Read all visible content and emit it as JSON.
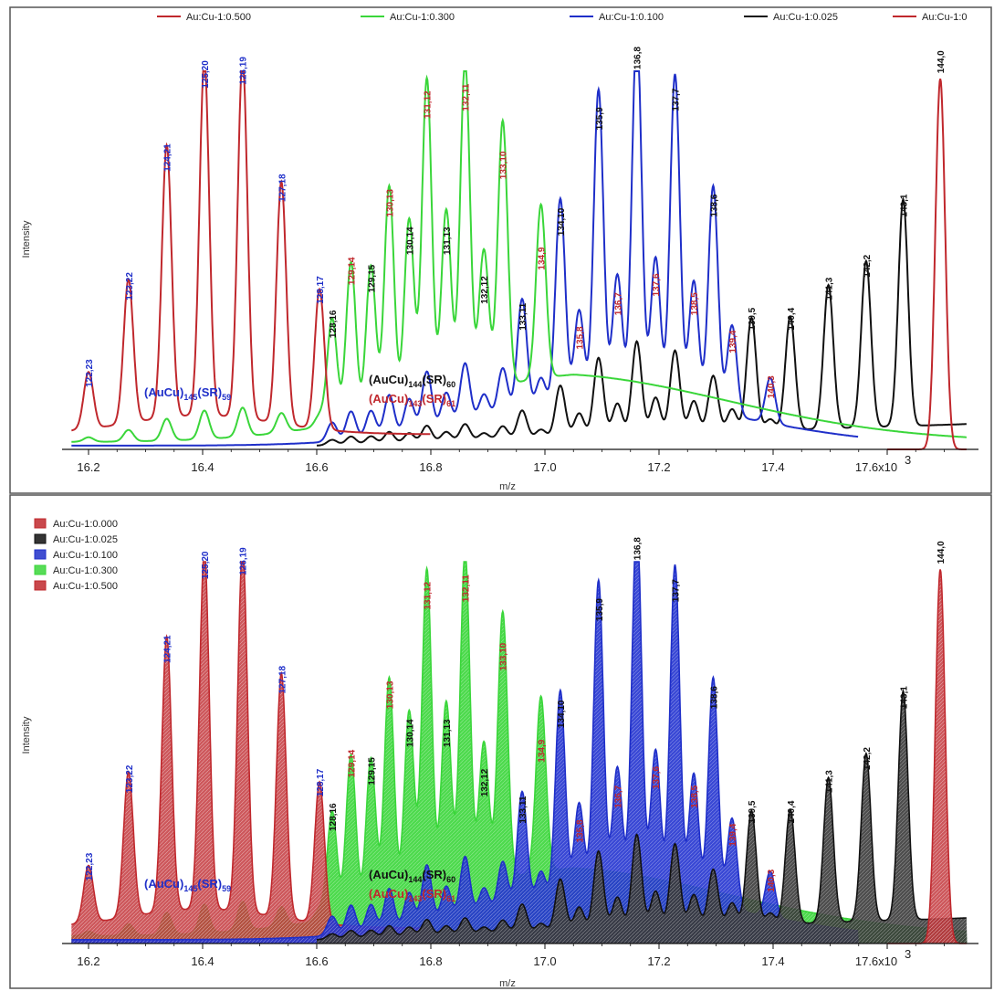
{
  "chart_data": [
    {
      "type": "line",
      "xlabel": "m/z",
      "ylabel": "Intensity",
      "x_unit_note": "17.6x10",
      "x_unit_exp": "3",
      "xlim": [
        16.17,
        17.75
      ],
      "x_ticks": [
        "16.2",
        "16.4",
        "16.6",
        "16.8",
        "17.0",
        "17.2",
        "17.4"
      ],
      "legend_placement": "top",
      "series": [
        {
          "name": "Au:Cu-1:0.500",
          "color": "#c0282d"
        },
        {
          "name": "Au:Cu-1:0.300",
          "color": "#3ad63a"
        },
        {
          "name": "Au:Cu-1:0.100",
          "color": "#1f2fc9"
        },
        {
          "name": "Au:Cu-1:0.025",
          "color": "#111111"
        },
        {
          "name": "Au:Cu-1:0",
          "color": "#c0282d"
        }
      ],
      "annotations": [
        {
          "main": "(AuCu)",
          "sub1": "145",
          "mid": "(SR)",
          "sub2": "59",
          "color": "#1f2fc9"
        },
        {
          "main": "(AuCu)",
          "sub1": "144",
          "mid": "(SR)",
          "sub2": "60",
          "color": "#111111"
        },
        {
          "main": "(AuCu)",
          "sub1": "143",
          "mid": "(SR)",
          "sub2": "61",
          "color": "#c0282d"
        }
      ]
    },
    {
      "type": "area",
      "xlabel": "m/z",
      "ylabel": "Intensity",
      "x_unit_note": "17.6x10",
      "x_unit_exp": "3",
      "xlim": [
        16.17,
        17.75
      ],
      "x_ticks": [
        "16.2",
        "16.4",
        "16.6",
        "16.8",
        "17.0",
        "17.2",
        "17.4"
      ],
      "legend_placement": "top-left",
      "series": [
        {
          "name": "Au:Cu-1:0.000",
          "color": "#c0282d"
        },
        {
          "name": "Au:Cu-1:0.025",
          "color": "#111111"
        },
        {
          "name": "Au:Cu-1:0.100",
          "color": "#1f2fc9"
        },
        {
          "name": "Au:Cu-1:0.300",
          "color": "#3ad63a"
        },
        {
          "name": "Au:Cu-1:0.500",
          "color": "#c0282d"
        }
      ],
      "annotations": [
        {
          "main": "(AuCu)",
          "sub1": "145",
          "mid": "(SR)",
          "sub2": "59",
          "color": "#1f2fc9"
        },
        {
          "main": "(AuCu)",
          "sub1": "144",
          "mid": "(SR)",
          "sub2": "60",
          "color": "#111111"
        },
        {
          "main": "(AuCu)",
          "sub1": "143",
          "mid": "(SR)",
          "sub2": "61",
          "color": "#c0282d"
        }
      ]
    }
  ],
  "peaks": [
    {
      "label": "122,23",
      "x": 16.2,
      "y": 0.15,
      "series": "c500",
      "label_color": "#1f2fc9"
    },
    {
      "label": "123,22",
      "x": 16.27,
      "y": 0.38,
      "series": "c500",
      "label_color": "#1f2fc9"
    },
    {
      "label": "124,21",
      "x": 16.337,
      "y": 0.72,
      "series": "c500",
      "label_color": "#1f2fc9"
    },
    {
      "label": "125,20",
      "x": 16.403,
      "y": 0.94,
      "series": "c500",
      "label_color": "#1f2fc9"
    },
    {
      "label": "126,19",
      "x": 16.47,
      "y": 0.95,
      "series": "c500",
      "label_color": "#1f2fc9"
    },
    {
      "label": "127,18",
      "x": 16.538,
      "y": 0.64,
      "series": "c500",
      "label_color": "#1f2fc9"
    },
    {
      "label": "128,17",
      "x": 16.605,
      "y": 0.37,
      "series": "c500",
      "label_color": "#1f2fc9"
    },
    {
      "label": "128,16",
      "x": 16.627,
      "y": 0.28,
      "series": "c300",
      "label_color": "#111111"
    },
    {
      "label": "129,14",
      "x": 16.66,
      "y": 0.42,
      "series": "c300",
      "label_color": "#c0282d"
    },
    {
      "label": "129,15",
      "x": 16.695,
      "y": 0.4,
      "series": "c300",
      "label_color": "#111111"
    },
    {
      "label": "130,13",
      "x": 16.727,
      "y": 0.6,
      "series": "c300",
      "label_color": "#c0282d"
    },
    {
      "label": "130,14",
      "x": 16.762,
      "y": 0.5,
      "series": "c300",
      "label_color": "#111111"
    },
    {
      "label": "131,12",
      "x": 16.793,
      "y": 0.86,
      "series": "c300",
      "label_color": "#c0282d"
    },
    {
      "label": "131,13",
      "x": 16.827,
      "y": 0.5,
      "series": "c300",
      "label_color": "#111111"
    },
    {
      "label": "132,11",
      "x": 16.86,
      "y": 0.88,
      "series": "c300",
      "label_color": "#c0282d"
    },
    {
      "label": "132,12",
      "x": 16.893,
      "y": 0.37,
      "series": "c300",
      "label_color": "#111111"
    },
    {
      "label": "133,10",
      "x": 16.926,
      "y": 0.7,
      "series": "c300",
      "label_color": "#c0282d"
    },
    {
      "label": "133,11",
      "x": 16.96,
      "y": 0.3,
      "series": "c100",
      "label_color": "#111111"
    },
    {
      "label": "134,9",
      "x": 16.993,
      "y": 0.46,
      "series": "c300",
      "label_color": "#c0282d"
    },
    {
      "label": "134,10",
      "x": 17.027,
      "y": 0.55,
      "series": "c100",
      "label_color": "#111111"
    },
    {
      "label": "135,8",
      "x": 17.06,
      "y": 0.25,
      "series": "c100",
      "label_color": "#c0282d"
    },
    {
      "label": "135,9",
      "x": 17.094,
      "y": 0.83,
      "series": "c100",
      "label_color": "#111111"
    },
    {
      "label": "136,7",
      "x": 17.127,
      "y": 0.34,
      "series": "c100",
      "label_color": "#c0282d"
    },
    {
      "label": "136,8",
      "x": 17.161,
      "y": 0.99,
      "series": "c100",
      "label_color": "#111111"
    },
    {
      "label": "137,6",
      "x": 17.194,
      "y": 0.39,
      "series": "c100",
      "label_color": "#c0282d"
    },
    {
      "label": "137,7",
      "x": 17.228,
      "y": 0.88,
      "series": "c100",
      "label_color": "#111111"
    },
    {
      "label": "138,5",
      "x": 17.261,
      "y": 0.34,
      "series": "c100",
      "label_color": "#c0282d"
    },
    {
      "label": "138,6",
      "x": 17.295,
      "y": 0.6,
      "series": "c100",
      "label_color": "#111111"
    },
    {
      "label": "139,4",
      "x": 17.328,
      "y": 0.24,
      "series": "c100",
      "label_color": "#c0282d"
    },
    {
      "label": "139,5",
      "x": 17.362,
      "y": 0.3,
      "series": "c025",
      "label_color": "#111111"
    },
    {
      "label": "140,3",
      "x": 17.395,
      "y": 0.12,
      "series": "c100",
      "label_color": "#c0282d"
    },
    {
      "label": "140,4",
      "x": 17.43,
      "y": 0.3,
      "series": "c025",
      "label_color": "#111111"
    },
    {
      "label": "141,3",
      "x": 17.497,
      "y": 0.38,
      "series": "c025",
      "label_color": "#111111"
    },
    {
      "label": "142,2",
      "x": 17.563,
      "y": 0.44,
      "series": "c025",
      "label_color": "#111111"
    },
    {
      "label": "143,1",
      "x": 17.628,
      "y": 0.6,
      "series": "c025",
      "label_color": "#111111"
    },
    {
      "label": "144,0",
      "x": 17.693,
      "y": 0.98,
      "series": "c0",
      "label_color": "#111111"
    }
  ]
}
